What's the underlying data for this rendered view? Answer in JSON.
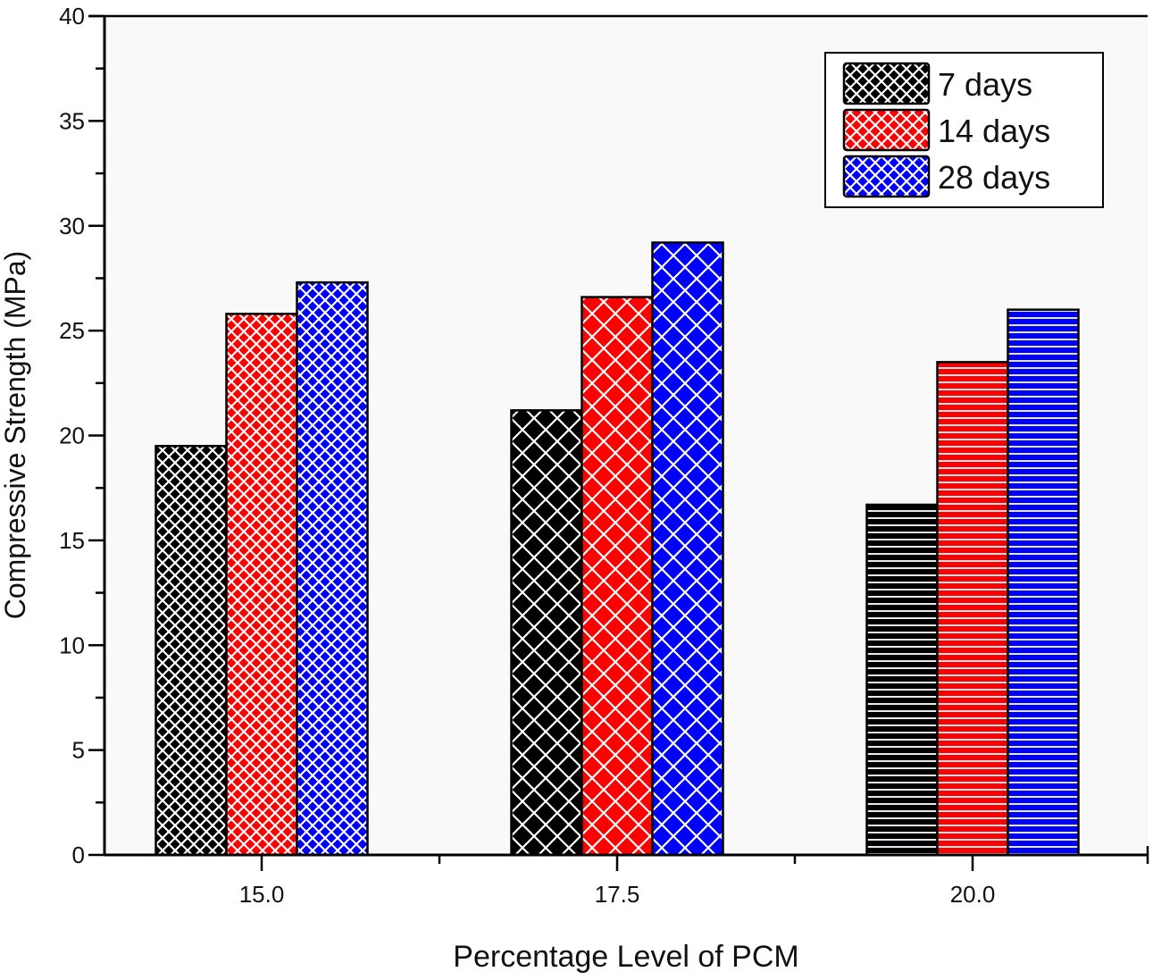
{
  "chart_data": {
    "type": "bar",
    "title": "",
    "xlabel": "Percentage Level of PCM",
    "ylabel": "Compressive Strength (MPa)",
    "categories": [
      "15.0",
      "17.5",
      "20.0"
    ],
    "ylim": [
      0,
      40
    ],
    "yticks": [
      "0",
      "5",
      "10",
      "15",
      "20",
      "25",
      "30",
      "35",
      "40"
    ],
    "grid": false,
    "legend_position": "top-right",
    "series": [
      {
        "name": "7 days",
        "color": "#000000",
        "values": [
          19.5,
          21.2,
          16.7
        ],
        "patterns": [
          "fine-crosshatch",
          "coarse-crosshatch",
          "horizontal-lines"
        ]
      },
      {
        "name": "14 days",
        "color": "#ff0000",
        "values": [
          25.8,
          26.6,
          23.5
        ],
        "patterns": [
          "fine-crosshatch",
          "coarse-crosshatch",
          "horizontal-lines"
        ]
      },
      {
        "name": "28 days",
        "color": "#0000ff",
        "values": [
          27.3,
          29.2,
          26.0
        ],
        "patterns": [
          "fine-crosshatch",
          "coarse-crosshatch",
          "horizontal-lines"
        ]
      }
    ]
  }
}
